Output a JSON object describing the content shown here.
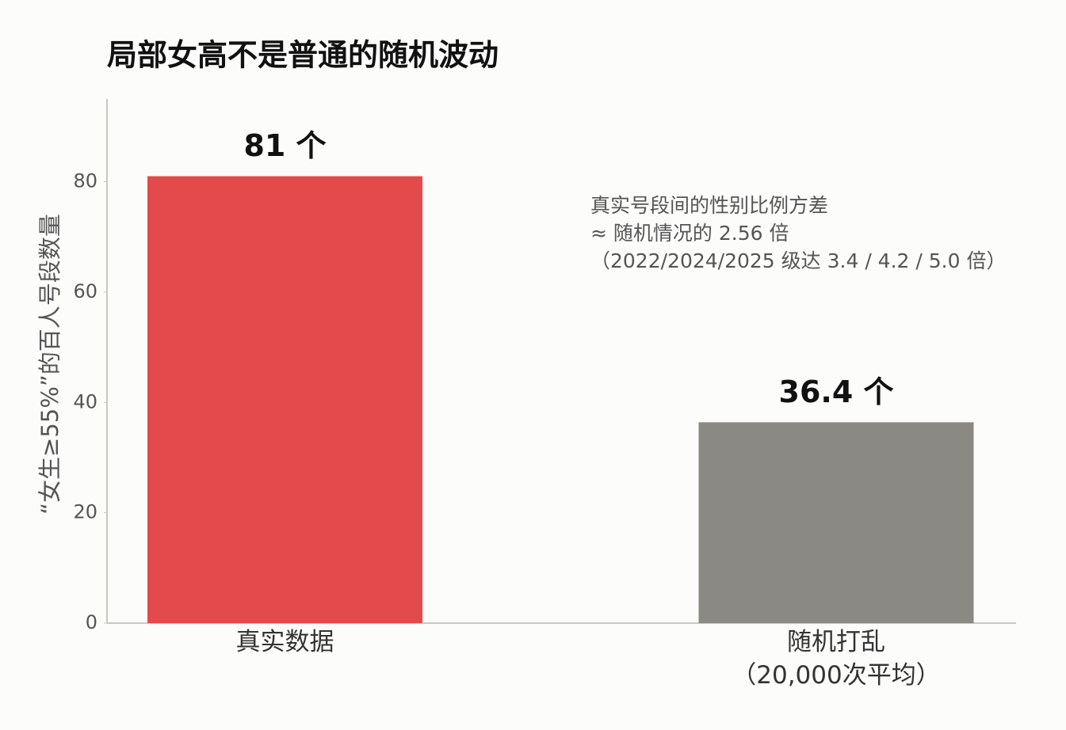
{
  "chart_data": {
    "type": "bar",
    "title": "局部女高不是普通的随机波动",
    "y_label": "“女生≥55%”的百人号段数量",
    "categories": [
      "真实数据",
      "随机打乱\n（20,000次平均）"
    ],
    "values": [
      81,
      36.4
    ],
    "value_labels": [
      "81 个",
      "36.4 个"
    ],
    "colors": [
      "#e34a4b",
      "#8a8984"
    ],
    "annotation": "真实号段间的性别比例方差\n≈ 随机情况的 2.56 倍\n（2022/2024/2025 级达 3.4 / 4.2 / 5.0 倍）",
    "ylim": [
      0,
      95
    ],
    "yticks": [
      0,
      20,
      40,
      60,
      80
    ],
    "grid": false
  }
}
